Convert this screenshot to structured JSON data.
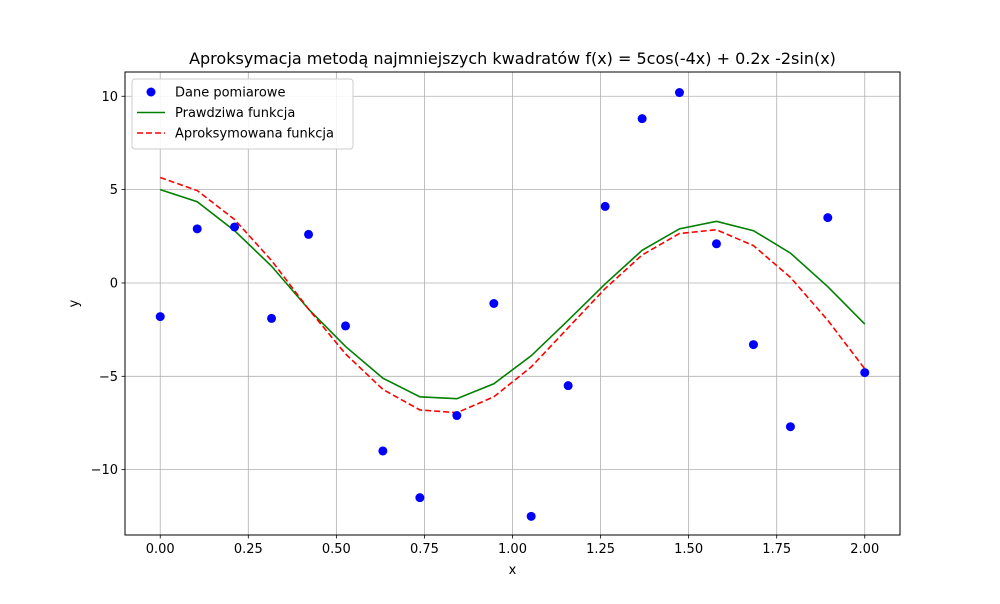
{
  "chart_data": {
    "type": "scatter",
    "title": "Aproksymacja metodą najmniejszych kwadratów f(x) =  5cos(-4x) + 0.2x -2sin(x)",
    "xlabel": "x",
    "ylabel": "y",
    "xlim": [
      -0.1,
      2.1
    ],
    "ylim": [
      -13.5,
      11.3
    ],
    "xticks": [
      0.0,
      0.25,
      0.5,
      0.75,
      1.0,
      1.25,
      1.5,
      1.75,
      2.0
    ],
    "xtick_labels": [
      "0.00",
      "0.25",
      "0.50",
      "0.75",
      "1.00",
      "1.25",
      "1.50",
      "1.75",
      "2.00"
    ],
    "yticks": [
      -10,
      -5,
      0,
      5,
      10
    ],
    "ytick_labels": [
      "−10",
      "−5",
      "0",
      "5",
      "10"
    ],
    "grid": true,
    "legend_position": "top-left",
    "series": [
      {
        "name": "Dane pomiarowe",
        "kind": "scatter",
        "color": "#0000ff",
        "x": [
          0.0,
          0.105,
          0.211,
          0.316,
          0.421,
          0.526,
          0.632,
          0.737,
          0.842,
          0.947,
          1.053,
          1.158,
          1.263,
          1.368,
          1.474,
          1.579,
          1.684,
          1.789,
          1.895,
          2.0
        ],
        "y": [
          -1.8,
          2.9,
          3.0,
          -1.9,
          2.6,
          -2.3,
          -9.0,
          -11.5,
          -7.1,
          -1.1,
          -12.5,
          -5.5,
          4.1,
          8.8,
          10.2,
          2.1,
          -3.3,
          -7.7,
          3.5,
          -4.8
        ]
      },
      {
        "name": "Prawdziwa funkcja",
        "kind": "line",
        "color": "#008000",
        "dash": "solid",
        "x": [
          0.0,
          0.105,
          0.211,
          0.316,
          0.421,
          0.526,
          0.632,
          0.737,
          0.842,
          0.947,
          1.053,
          1.158,
          1.263,
          1.368,
          1.474,
          1.579,
          1.684,
          1.789,
          1.895,
          2.0
        ],
        "y": [
          5.0,
          4.35,
          2.8,
          0.9,
          -1.4,
          -3.4,
          -5.1,
          -6.1,
          -6.2,
          -5.4,
          -3.9,
          -2.0,
          -0.05,
          1.75,
          2.9,
          3.3,
          2.8,
          1.6,
          -0.2,
          -2.2
        ]
      },
      {
        "name": "Aproksymowana funkcja",
        "kind": "line",
        "color": "#ff0000",
        "dash": "dashed",
        "x": [
          0.0,
          0.105,
          0.211,
          0.316,
          0.421,
          0.526,
          0.632,
          0.737,
          0.842,
          0.947,
          1.053,
          1.158,
          1.263,
          1.368,
          1.474,
          1.579,
          1.684,
          1.789,
          1.895,
          2.0
        ],
        "y": [
          5.65,
          4.95,
          3.4,
          1.2,
          -1.4,
          -3.8,
          -5.7,
          -6.8,
          -6.95,
          -6.1,
          -4.5,
          -2.4,
          -0.3,
          1.5,
          2.65,
          2.85,
          2.0,
          0.3,
          -2.0,
          -4.6
        ]
      }
    ]
  }
}
